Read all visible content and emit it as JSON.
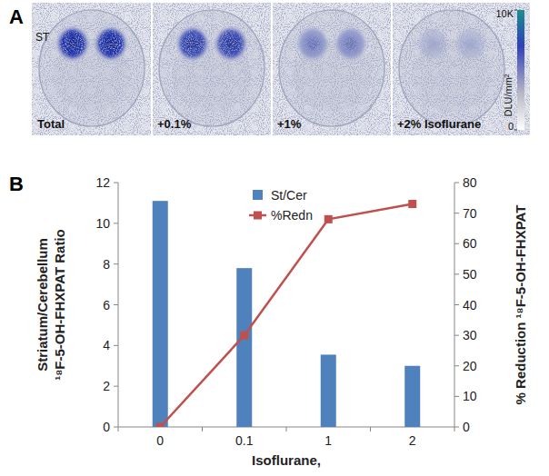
{
  "panel_labels": [
    "A",
    "B"
  ],
  "image_panel": {
    "images": [
      "Total",
      "+0.1%",
      "+1%",
      "+2% Isoflurane"
    ],
    "region_label": "ST",
    "colorbar": {
      "label": "DLU/mm²",
      "range": [
        0,
        10000
      ],
      "ticks": [
        {
          "value": 10000,
          "label": "10K"
        },
        0
      ]
    }
  },
  "chart_data": {
    "type": "bar",
    "categories": [
      "0",
      "0.1",
      "1",
      "2"
    ],
    "xlabel": "Isoflurane,",
    "ylabel": [
      "Striatum/Cerebellum",
      "¹⁸F-5-OH-FHXPAT Ratio"
    ],
    "y2label": "% Reduction ¹⁸F-5-OH-FHXPAT",
    "ylim": [
      0,
      12
    ],
    "yticks": [
      0,
      2,
      4,
      6,
      8,
      10,
      12
    ],
    "y2lim": [
      0,
      80
    ],
    "y2ticks": [
      0,
      10,
      20,
      30,
      40,
      50,
      60,
      70,
      80
    ],
    "legend": "top",
    "series": [
      {
        "name": "St/Cer",
        "type": "bar",
        "color": "#4f81bd",
        "values": [
          11.1,
          7.8,
          3.55,
          3.0
        ]
      },
      {
        "name": "%Redn",
        "type": "line",
        "color": "#c0504d",
        "marker": "square",
        "axis": "y2",
        "values": [
          0,
          30,
          68,
          73
        ]
      }
    ]
  }
}
